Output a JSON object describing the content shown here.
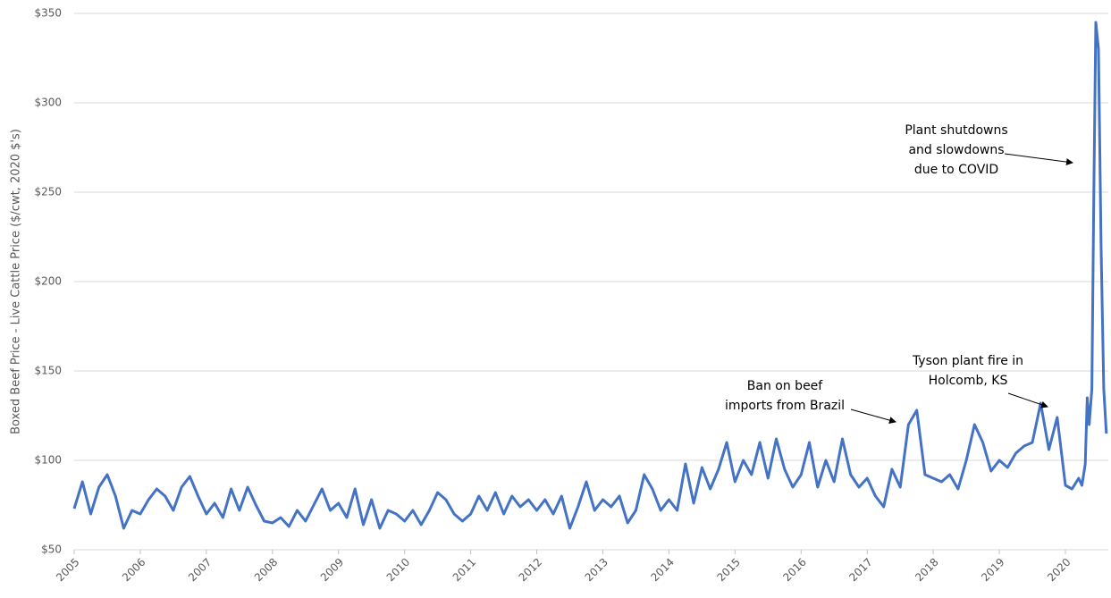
{
  "chart_data": {
    "type": "line",
    "y_label": "Boxed Beef Price - Live Cattle Price ($/cwt, 2020 $'s)",
    "color": "#4472c4",
    "grid": true,
    "xlim": [
      2005,
      2020.65
    ],
    "xticks": [
      2005,
      2006,
      2007,
      2008,
      2009,
      2010,
      2011,
      2012,
      2013,
      2014,
      2015,
      2016,
      2017,
      2018,
      2019,
      2020
    ],
    "ylim": [
      50,
      350
    ],
    "yticks": [
      {
        "value": 50,
        "label": "$50"
      },
      {
        "value": 100,
        "label": "$100"
      },
      {
        "value": 150,
        "label": "$150"
      },
      {
        "value": 200,
        "label": "$200"
      },
      {
        "value": 250,
        "label": "$250"
      },
      {
        "value": 300,
        "label": "$300"
      },
      {
        "value": 350,
        "label": "$350"
      }
    ],
    "x": [
      2005,
      2005.125,
      2005.25,
      2005.375,
      2005.5,
      2005.625,
      2005.75,
      2005.875,
      2006,
      2006.125,
      2006.25,
      2006.375,
      2006.5,
      2006.625,
      2006.75,
      2006.875,
      2007,
      2007.125,
      2007.25,
      2007.375,
      2007.5,
      2007.625,
      2007.75,
      2007.875,
      2008,
      2008.125,
      2008.25,
      2008.375,
      2008.5,
      2008.625,
      2008.75,
      2008.875,
      2009,
      2009.125,
      2009.25,
      2009.375,
      2009.5,
      2009.625,
      2009.75,
      2009.875,
      2010,
      2010.125,
      2010.25,
      2010.375,
      2010.5,
      2010.625,
      2010.75,
      2010.875,
      2011,
      2011.125,
      2011.25,
      2011.375,
      2011.5,
      2011.625,
      2011.75,
      2011.875,
      2012,
      2012.125,
      2012.25,
      2012.375,
      2012.5,
      2012.625,
      2012.75,
      2012.875,
      2013,
      2013.125,
      2013.25,
      2013.375,
      2013.5,
      2013.625,
      2013.75,
      2013.875,
      2014,
      2014.125,
      2014.25,
      2014.375,
      2014.5,
      2014.625,
      2014.75,
      2014.875,
      2015,
      2015.125,
      2015.25,
      2015.375,
      2015.5,
      2015.625,
      2015.75,
      2015.875,
      2016,
      2016.125,
      2016.25,
      2016.375,
      2016.5,
      2016.625,
      2016.75,
      2016.875,
      2017,
      2017.125,
      2017.25,
      2017.375,
      2017.5,
      2017.625,
      2017.75,
      2017.875,
      2018,
      2018.125,
      2018.25,
      2018.375,
      2018.5,
      2018.625,
      2018.75,
      2018.875,
      2019,
      2019.125,
      2019.25,
      2019.375,
      2019.5,
      2019.625,
      2019.75,
      2019.875,
      2020,
      2020.1,
      2020.2,
      2020.25,
      2020.3,
      2020.33,
      2020.36,
      2020.4,
      2020.43,
      2020.46,
      2020.5,
      2020.54,
      2020.58,
      2020.62
    ],
    "values": [
      73,
      88,
      70,
      85,
      92,
      80,
      62,
      72,
      70,
      78,
      84,
      80,
      72,
      85,
      91,
      80,
      70,
      76,
      68,
      84,
      72,
      85,
      75,
      66,
      65,
      68,
      63,
      72,
      66,
      75,
      84,
      72,
      76,
      68,
      84,
      64,
      78,
      62,
      72,
      70,
      66,
      72,
      64,
      72,
      82,
      78,
      70,
      66,
      70,
      80,
      72,
      82,
      70,
      80,
      74,
      78,
      72,
      78,
      70,
      80,
      62,
      74,
      88,
      72,
      78,
      74,
      80,
      65,
      72,
      92,
      84,
      72,
      78,
      72,
      98,
      76,
      96,
      84,
      95,
      110,
      88,
      100,
      92,
      110,
      90,
      112,
      95,
      85,
      92,
      110,
      85,
      100,
      88,
      112,
      92,
      85,
      90,
      80,
      74,
      95,
      85,
      120,
      128,
      92,
      90,
      88,
      92,
      84,
      100,
      120,
      110,
      94,
      100,
      96,
      104,
      108,
      110,
      132,
      106,
      124,
      86,
      84,
      90,
      86,
      98,
      135,
      120,
      140,
      250,
      345,
      330,
      220,
      140,
      115
    ],
    "annotations": [
      [
        "Ban on beef",
        "imports from Brazil"
      ],
      [
        "Tyson plant fire in",
        "Holcomb, KS"
      ],
      [
        "Plant shutdowns",
        "and slowdowns",
        "due to COVID"
      ]
    ]
  }
}
